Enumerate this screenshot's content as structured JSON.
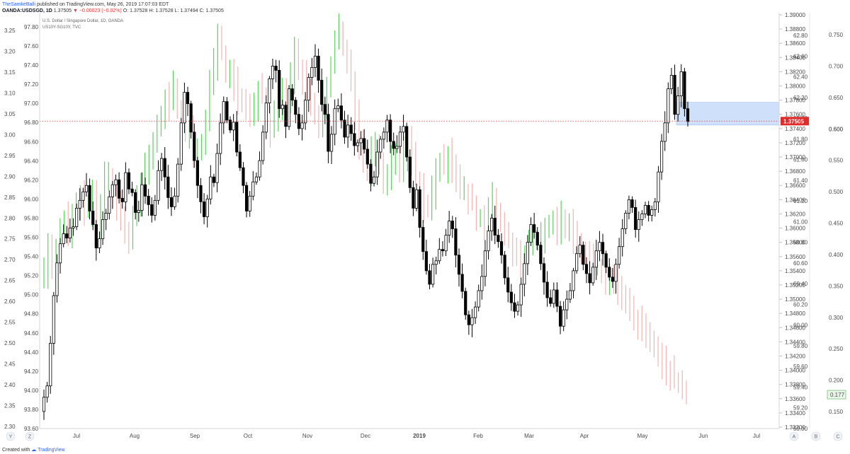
{
  "header": {
    "author": "TheSamkeBalli",
    "published": "published on TradingView.com, May 26, 2019 17:07:03 EDT",
    "ticker": "OANDA:USDSGD, 1D",
    "last": "1.37505",
    "change": "▼ −0.00023 (−0.02%)",
    "ohlc": "O: 1.37528  H: 1.37528  L: 1.37494  C: 1.37505"
  },
  "legend": {
    "line1": "U.S. Dollar / Singapore Dollar, 1D, OANDA",
    "line2": "US10Y-SG10Y, TVC"
  },
  "footer": {
    "created_with": "Created with",
    "brand": "TradingView"
  },
  "bottom_buttons": [
    "Y",
    "Z",
    "A",
    "B",
    "C"
  ],
  "colors": {
    "up": "#5bd35e",
    "down": "#f0b4b4",
    "candle": "#000000",
    "zone": "#cfe0fb",
    "priceLine": "#e03a3a",
    "priceTag": "#e02b2b",
    "spreadTag": "#4caf50"
  },
  "chart_data": {
    "type": "candlestick",
    "title": "U.S. Dollar / Singapore Dollar, 1D, OANDA",
    "x_labels": [
      "Jul",
      "Aug",
      "Sep",
      "Oct",
      "Nov",
      "Dec",
      "2019",
      "Feb",
      "Mar",
      "Apr",
      "May",
      "Jun",
      "Jul"
    ],
    "last_price": 1.37505,
    "spread_last": 0.177,
    "spread_level_marker": 0.6,
    "zone": [
      1.3745,
      1.3777
    ],
    "axes": {
      "left_outer": {
        "ticks": [
          "3.25",
          "3.20",
          "3.15",
          "3.10",
          "3.05",
          "3.00",
          "2.95",
          "2.90",
          "2.85",
          "2.80",
          "2.75",
          "2.70",
          "2.65",
          "2.60",
          "2.55",
          "2.50",
          "2.45",
          "2.40",
          "2.35",
          "2.30"
        ]
      },
      "left_inner": {
        "ticks": [
          "97.80",
          "97.60",
          "97.40",
          "97.20",
          "97.00",
          "96.80",
          "96.60",
          "96.40",
          "96.20",
          "96.00",
          "95.80",
          "95.60",
          "95.40",
          "95.20",
          "95.00",
          "94.80",
          "94.60",
          "94.40",
          "94.20",
          "94.00",
          "93.80",
          "93.60"
        ]
      },
      "right_price": {
        "range": [
          1.3318,
          1.3903
        ],
        "ticks": [
          "1.39000",
          "1.38800",
          "1.38600",
          "1.38400",
          "1.38200",
          "1.38000",
          "1.37800",
          "1.37600",
          "1.37400",
          "1.37200",
          "1.37000",
          "1.36800",
          "1.36600",
          "1.36400",
          "1.36200",
          "1.36000",
          "1.35800",
          "1.35600",
          "1.35400",
          "1.35200",
          "1.35000",
          "1.34800",
          "1.34600",
          "1.34400",
          "1.34200",
          "1.34000",
          "1.33800",
          "1.33600",
          "1.33400",
          "1.33200"
        ]
      },
      "right_mid": {
        "ticks": [
          "62.80",
          "62.60",
          "62.40",
          "62.20",
          "62.00",
          "61.80",
          "61.60",
          "61.40",
          "61.20",
          "61.00",
          "60.80",
          "60.60",
          "60.40",
          "60.20",
          "60.00",
          "59.80",
          "59.60",
          "59.40",
          "59.20",
          "59.00"
        ]
      },
      "right_spread": {
        "range": [
          0.123,
          0.785
        ],
        "ticks": [
          "0.750",
          "0.700",
          "0.650",
          "0.600",
          "0.550",
          "0.500",
          "0.450",
          "0.400",
          "0.350",
          "0.300",
          "0.250",
          "0.200",
          "0.177",
          "0.150"
        ]
      }
    },
    "price_series": [
      1.3362,
      1.3378,
      1.3438,
      1.3505,
      1.3551,
      1.3578,
      1.3592,
      1.3586,
      1.36,
      1.3602,
      1.3628,
      1.3639,
      1.3651,
      1.366,
      1.3624,
      1.3605,
      1.3572,
      1.3585,
      1.3612,
      1.3621,
      1.3644,
      1.3661,
      1.3668,
      1.3642,
      1.3637,
      1.3678,
      1.3655,
      1.365,
      1.3622,
      1.3625,
      1.3661,
      1.3645,
      1.3633,
      1.3618,
      1.3639,
      1.3681,
      1.3698,
      1.3672,
      1.3643,
      1.363,
      1.3645,
      1.369,
      1.3748,
      1.3791,
      1.3775,
      1.3735,
      1.3695,
      1.366,
      1.3637,
      1.3616,
      1.3641,
      1.3672,
      1.3664,
      1.3705,
      1.3748,
      1.3778,
      1.3752,
      1.3738,
      1.3749,
      1.3707,
      1.3685,
      1.366,
      1.3624,
      1.3645,
      1.3665,
      1.3672,
      1.3695,
      1.3735,
      1.3776,
      1.381,
      1.3828,
      1.3822,
      1.3768,
      1.3773,
      1.3743,
      1.3796,
      1.378,
      1.376,
      1.374,
      1.3748,
      1.378,
      1.3812,
      1.3826,
      1.3842,
      1.3808,
      1.3774,
      1.376,
      1.3708,
      1.3732,
      1.3768,
      1.3772,
      1.3752,
      1.3728,
      1.3745,
      1.3733,
      1.3716,
      1.372,
      1.3726,
      1.3711,
      1.369,
      1.3663,
      1.3672,
      1.3707,
      1.3725,
      1.3735,
      1.3752,
      1.3722,
      1.3712,
      1.3715,
      1.3735,
      1.3743,
      1.37,
      1.3657,
      1.3628,
      1.3654,
      1.3601,
      1.3567,
      1.354,
      1.3521,
      1.3549,
      1.3554,
      1.357,
      1.3568,
      1.359,
      1.361,
      1.3599,
      1.3562,
      1.3535,
      1.3511,
      1.3478,
      1.3464,
      1.3474,
      1.3489,
      1.3512,
      1.3532,
      1.3568,
      1.3596,
      1.3614,
      1.359,
      1.3581,
      1.3562,
      1.353,
      1.351,
      1.3495,
      1.3483,
      1.3492,
      1.3521,
      1.355,
      1.358,
      1.3605,
      1.3594,
      1.3576,
      1.355,
      1.3524,
      1.3502,
      1.3494,
      1.3513,
      1.349,
      1.3462,
      1.3485,
      1.35,
      1.3512,
      1.354,
      1.3564,
      1.3576,
      1.3549,
      1.3536,
      1.3523,
      1.3545,
      1.3568,
      1.358,
      1.3564,
      1.3545,
      1.3531,
      1.3525,
      1.3549,
      1.3574,
      1.3599,
      1.3621,
      1.364,
      1.3629,
      1.3598,
      1.3612,
      1.362,
      1.3632,
      1.3618,
      1.3626,
      1.3637,
      1.3679,
      1.3722,
      1.3748,
      1.3796,
      1.3815,
      1.376,
      1.3786,
      1.382,
      1.3768,
      1.375
    ],
    "spread_series": [
      0.37,
      0.42,
      0.38,
      0.4,
      0.44,
      0.46,
      0.43,
      0.47,
      0.48,
      0.5,
      0.47,
      0.47,
      0.49,
      0.44,
      0.48,
      0.52,
      0.52,
      0.5,
      0.48,
      0.46,
      0.44,
      0.42,
      0.46,
      0.49,
      0.52,
      0.54,
      0.56,
      0.58,
      0.6,
      0.61,
      0.65,
      0.64,
      0.67,
      0.63,
      0.61,
      0.59,
      0.6,
      0.55,
      0.57,
      0.58,
      0.62,
      0.67,
      0.7,
      0.74,
      0.72,
      0.69,
      0.69,
      0.67,
      0.65,
      0.64,
      0.63,
      0.62,
      0.64,
      0.66,
      0.65,
      0.61,
      0.6,
      0.62,
      0.64,
      0.66,
      0.65,
      0.68,
      0.72,
      0.7,
      0.68,
      0.66,
      0.64,
      0.62,
      0.6,
      0.63,
      0.67,
      0.7,
      0.74,
      0.76,
      0.73,
      0.71,
      0.68,
      0.62,
      0.58,
      0.55,
      0.53,
      0.56,
      0.58,
      0.54,
      0.52,
      0.53,
      0.55,
      0.56,
      0.54,
      0.56,
      0.58,
      0.55,
      0.52,
      0.5,
      0.48,
      0.47,
      0.5,
      0.53,
      0.55,
      0.54,
      0.56,
      0.54,
      0.52,
      0.5,
      0.5,
      0.49,
      0.48,
      0.46,
      0.46,
      0.45,
      0.47,
      0.49,
      0.47,
      0.45,
      0.43,
      0.42,
      0.41,
      0.4,
      0.39,
      0.4,
      0.41,
      0.42,
      0.42,
      0.43,
      0.44,
      0.45,
      0.45,
      0.44,
      0.46,
      0.45,
      0.45,
      0.43,
      0.42,
      0.41,
      0.4,
      0.39,
      0.38,
      0.38,
      0.37,
      0.36,
      0.36,
      0.35,
      0.34,
      0.33,
      0.32,
      0.31,
      0.3,
      0.29,
      0.28,
      0.27,
      0.26,
      0.25,
      0.24,
      0.23,
      0.22,
      0.21,
      0.2,
      0.19,
      0.18,
      0.177
    ]
  }
}
